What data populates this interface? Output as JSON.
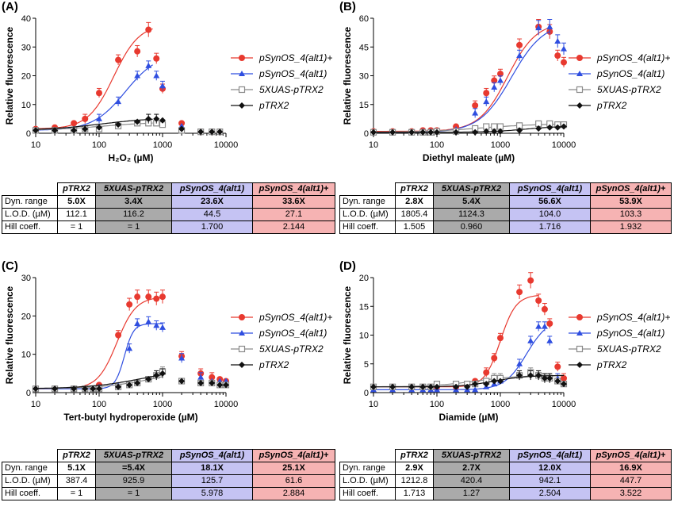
{
  "legend": {
    "alt1plus": "pSynOS_4(alt1)+",
    "alt1": "pSynOS_4(alt1)",
    "xuas": "5XUAS-pTRX2",
    "ptrx2": "pTRX2"
  },
  "colors": {
    "red": "#e8392f",
    "blue": "#2f4ee0",
    "grey": "#8a8a8a",
    "black": "#111111",
    "table_grey": "#aaaaaa",
    "table_blue": "#c5c3f3",
    "table_red": "#f6b3b3"
  },
  "table_headers": [
    "pTRX2",
    "5XUAS-pTRX2",
    "pSynOS_4(alt1)",
    "pSynOS_4(alt1)+"
  ],
  "table_row_labels": [
    "Dyn. range",
    "L.O.D. (µM)",
    "Hill coeff."
  ],
  "panels": [
    {
      "label": "(A)",
      "ylabel": "Relative fluorescence",
      "xlabel": "H₂O₂ (µM)",
      "table": [
        [
          "5.0X",
          "3.4X",
          "23.6X",
          "33.6X"
        ],
        [
          "112.1",
          "116.2",
          "44.5",
          "27.1"
        ],
        [
          "= 1",
          "= 1",
          "1.700",
          "2.144"
        ]
      ]
    },
    {
      "label": "(B)",
      "ylabel": "Relative fluorescence",
      "xlabel": "Diethyl maleate (µM)",
      "table": [
        [
          "2.8X",
          "5.4X",
          "56.6X",
          "53.9X"
        ],
        [
          "1805.4",
          "1124.3",
          "104.0",
          "103.3"
        ],
        [
          "1.505",
          "0.960",
          "1.716",
          "1.932"
        ]
      ]
    },
    {
      "label": "(C)",
      "ylabel": "Relative fluorescence",
      "xlabel": "Tert-butyl hydroperoxide (µM)",
      "table": [
        [
          "5.1X",
          "=5.4X",
          "18.1X",
          "25.1X"
        ],
        [
          "387.4",
          "925.9",
          "125.7",
          "61.6"
        ],
        [
          "= 1",
          "= 1",
          "5.978",
          "2.884"
        ]
      ]
    },
    {
      "label": "(D)",
      "ylabel": "Relative fluorescence",
      "xlabel": "Diamide (µM)",
      "table": [
        [
          "2.9X",
          "2.7X",
          "12.0X",
          "16.9X"
        ],
        [
          "1212.8",
          "420.4",
          "942.1",
          "447.7"
        ],
        [
          "1.713",
          "1.27",
          "2.504",
          "3.522"
        ]
      ]
    }
  ],
  "chart_data": [
    {
      "type": "scatter",
      "xlabel": "H₂O₂ (µM)",
      "ylabel": "Relative fluorescence",
      "xscale": "log",
      "xlim": [
        10,
        10000
      ],
      "ylim": [
        0,
        40
      ],
      "xticks": [
        10,
        100,
        1000,
        10000
      ],
      "yticks": [
        0,
        10,
        20,
        30,
        40
      ],
      "series": [
        {
          "name": "pSynOS_4(alt1)+",
          "color": "red",
          "marker": "circle",
          "x": [
            10,
            20,
            40,
            60,
            100,
            200,
            400,
            600,
            800,
            1000,
            2000,
            4000,
            6000,
            8000
          ],
          "y": [
            1.5,
            2.0,
            3.5,
            5.0,
            14.0,
            25.5,
            28.5,
            36.0,
            26.0,
            15.5,
            3.5,
            0.5,
            0.5,
            0.5
          ],
          "fit": {
            "base": 1.5,
            "top": 38,
            "ec50": 170,
            "hill": 2.144,
            "xmax": 700
          }
        },
        {
          "name": "pSynOS_4(alt1)",
          "color": "blue",
          "marker": "triangle",
          "x": [
            10,
            20,
            40,
            60,
            100,
            200,
            400,
            600,
            800,
            1000,
            2000,
            4000,
            6000,
            8000
          ],
          "y": [
            1.0,
            1.0,
            1.5,
            2.0,
            5.0,
            11.0,
            20.0,
            23.5,
            20.0,
            16.5,
            2.5,
            0.5,
            0.5,
            0.5
          ],
          "fit": {
            "base": 1.0,
            "top": 28,
            "ec50": 260,
            "hill": 1.7,
            "xmax": 700
          }
        },
        {
          "name": "5XUAS-pTRX2",
          "color": "grey",
          "marker": "square",
          "x": [
            10,
            20,
            40,
            60,
            100,
            200,
            400,
            600,
            800,
            1000,
            2000,
            4000,
            6000,
            8000
          ],
          "y": [
            1.0,
            1.0,
            1.0,
            1.5,
            1.5,
            2.5,
            3.5,
            3.5,
            3.5,
            3.0,
            1.0,
            0.5,
            0.5,
            0.5
          ],
          "fit": {
            "base": 1.0,
            "top": 4.0,
            "ec50": 120,
            "hill": 1.0,
            "xmax": 700
          }
        },
        {
          "name": "pTRX2",
          "color": "black",
          "marker": "diamond",
          "x": [
            10,
            20,
            40,
            60,
            100,
            200,
            400,
            600,
            800,
            1000,
            2000,
            4000,
            6000,
            8000
          ],
          "y": [
            1.0,
            1.0,
            1.0,
            1.5,
            2.0,
            3.0,
            4.0,
            5.0,
            5.0,
            4.5,
            1.5,
            0.5,
            0.5,
            0.5
          ],
          "fit": {
            "base": 1.0,
            "top": 5.5,
            "ec50": 110,
            "hill": 1.0,
            "xmax": 700
          }
        }
      ]
    },
    {
      "type": "scatter",
      "xlabel": "Diethyl maleate (µM)",
      "ylabel": "Relative fluorescence",
      "xscale": "log",
      "xlim": [
        10,
        10000
      ],
      "ylim": [
        0,
        60
      ],
      "xticks": [
        10,
        100,
        1000,
        10000
      ],
      "yticks": [
        0,
        15,
        30,
        45,
        60
      ],
      "series": [
        {
          "name": "pSynOS_4(alt1)+",
          "color": "red",
          "marker": "circle",
          "x": [
            10,
            20,
            40,
            60,
            80,
            100,
            200,
            400,
            600,
            800,
            1000,
            2000,
            4000,
            6000,
            8000,
            10000
          ],
          "y": [
            1.0,
            1.0,
            1.0,
            1.5,
            1.5,
            1.5,
            3.5,
            14.5,
            21.0,
            27.5,
            31.0,
            46.0,
            55.5,
            53.0,
            40.5,
            37.0
          ],
          "fit": {
            "base": 1.0,
            "top": 58,
            "ec50": 1300,
            "hill": 1.932,
            "xmax": 6000
          }
        },
        {
          "name": "pSynOS_4(alt1)",
          "color": "blue",
          "marker": "triangle",
          "x": [
            10,
            20,
            40,
            60,
            80,
            100,
            200,
            400,
            600,
            800,
            1000,
            2000,
            4000,
            6000,
            8000,
            10000
          ],
          "y": [
            0.5,
            0.5,
            0.5,
            1.0,
            1.0,
            1.0,
            2.0,
            10.5,
            16.5,
            24.0,
            27.5,
            40.5,
            55.0,
            55.5,
            48.0,
            44.0
          ],
          "fit": {
            "base": 0.5,
            "top": 58,
            "ec50": 1500,
            "hill": 1.716,
            "xmax": 6000
          }
        },
        {
          "name": "5XUAS-pTRX2",
          "color": "grey",
          "marker": "square",
          "x": [
            10,
            20,
            40,
            60,
            80,
            100,
            200,
            400,
            600,
            800,
            1000,
            2000,
            4000,
            6000,
            8000,
            10000
          ],
          "y": [
            0.5,
            0.5,
            0.5,
            0.5,
            0.5,
            1.0,
            1.0,
            2.5,
            3.5,
            3.5,
            3.5,
            4.0,
            5.0,
            5.0,
            4.5,
            4.5
          ],
          "fit": {
            "base": 0.5,
            "top": 5.0,
            "ec50": 500,
            "hill": 0.96,
            "xmax": 10000
          }
        },
        {
          "name": "pTRX2",
          "color": "black",
          "marker": "diamond",
          "x": [
            10,
            20,
            40,
            60,
            80,
            100,
            200,
            400,
            600,
            800,
            1000,
            2000,
            4000,
            6000,
            8000,
            10000
          ],
          "y": [
            0.5,
            0.5,
            0.5,
            0.5,
            0.5,
            0.5,
            0.5,
            0.5,
            1.0,
            1.0,
            1.0,
            1.5,
            2.5,
            3.0,
            3.0,
            3.5
          ],
          "fit": {
            "base": 0.5,
            "top": 3.8,
            "ec50": 2500,
            "hill": 1.505,
            "xmax": 10000
          }
        }
      ]
    },
    {
      "type": "scatter",
      "xlabel": "Tert-butyl hydroperoxide (µM)",
      "ylabel": "Relative fluorescence",
      "xscale": "log",
      "xlim": [
        10,
        10000
      ],
      "ylim": [
        0,
        30
      ],
      "xticks": [
        10,
        100,
        1000,
        10000
      ],
      "yticks": [
        0,
        10,
        20,
        30
      ],
      "series": [
        {
          "name": "pSynOS_4(alt1)+",
          "color": "red",
          "marker": "circle",
          "x": [
            10,
            20,
            40,
            60,
            80,
            100,
            200,
            300,
            400,
            600,
            800,
            1000,
            2000,
            4000,
            6000,
            8000,
            10000
          ],
          "y": [
            1.0,
            1.0,
            1.0,
            1.0,
            1.0,
            2.0,
            15.0,
            23.0,
            25.0,
            25.0,
            24.5,
            25.0,
            9.5,
            5.0,
            4.0,
            3.5,
            3.0
          ],
          "fit": {
            "base": 1.0,
            "top": 25,
            "ec50": 190,
            "hill": 2.884,
            "xmax": 1000
          }
        },
        {
          "name": "pSynOS_4(alt1)",
          "color": "blue",
          "marker": "triangle",
          "x": [
            10,
            20,
            40,
            60,
            80,
            100,
            200,
            300,
            400,
            600,
            800,
            1000,
            2000,
            4000,
            6000,
            8000,
            10000
          ],
          "y": [
            1.0,
            1.0,
            1.0,
            1.0,
            1.0,
            1.5,
            2.0,
            11.5,
            18.0,
            18.5,
            17.5,
            17.0,
            9.0,
            4.0,
            3.0,
            3.0,
            3.0
          ],
          "fit": {
            "base": 1.0,
            "top": 18,
            "ec50": 250,
            "hill": 5.978,
            "xmax": 1000
          }
        },
        {
          "name": "5XUAS-pTRX2",
          "color": "grey",
          "marker": "square",
          "x": [
            10,
            20,
            40,
            60,
            80,
            100,
            200,
            300,
            400,
            600,
            800,
            1000,
            2000,
            4000,
            6000,
            8000,
            10000
          ],
          "y": [
            1.0,
            1.0,
            1.0,
            1.0,
            1.0,
            1.0,
            1.5,
            2.0,
            2.5,
            3.5,
            4.5,
            5.5,
            3.0,
            2.5,
            2.5,
            2.0,
            2.0
          ],
          "fit": {
            "base": 1.0,
            "top": 7.0,
            "ec50": 900,
            "hill": 1.0,
            "xmax": 1000
          }
        },
        {
          "name": "pTRX2",
          "color": "black",
          "marker": "diamond",
          "x": [
            10,
            20,
            40,
            60,
            80,
            100,
            200,
            300,
            400,
            600,
            800,
            1000,
            2000,
            4000,
            6000,
            8000,
            10000
          ],
          "y": [
            1.0,
            1.0,
            1.0,
            1.0,
            1.0,
            1.0,
            1.5,
            2.0,
            2.5,
            3.5,
            4.5,
            5.0,
            3.0,
            2.5,
            2.5,
            2.0,
            2.0
          ],
          "fit": {
            "base": 1.0,
            "top": 6.5,
            "ec50": 500,
            "hill": 1.0,
            "xmax": 1000
          }
        }
      ]
    },
    {
      "type": "scatter",
      "xlabel": "Diamide (µM)",
      "ylabel": "Relative fluorescence",
      "xscale": "log",
      "xlim": [
        10,
        10000
      ],
      "ylim": [
        0,
        20
      ],
      "xticks": [
        10,
        100,
        1000,
        10000
      ],
      "yticks": [
        0,
        5,
        10,
        15,
        20
      ],
      "series": [
        {
          "name": "pSynOS_4(alt1)+",
          "color": "red",
          "marker": "circle",
          "x": [
            10,
            20,
            40,
            60,
            80,
            100,
            200,
            300,
            400,
            600,
            800,
            1000,
            2000,
            3000,
            4000,
            5000,
            6000,
            8000,
            10000
          ],
          "y": [
            1.0,
            1.0,
            1.0,
            1.0,
            1.0,
            1.0,
            1.0,
            1.5,
            2.0,
            3.5,
            6.0,
            9.5,
            17.5,
            19.5,
            16.0,
            14.5,
            12.0,
            4.5,
            2.5
          ],
          "fit": {
            "base": 1.0,
            "top": 17,
            "ec50": 1000,
            "hill": 3.522,
            "xmax": 4000
          }
        },
        {
          "name": "pSynOS_4(alt1)",
          "color": "blue",
          "marker": "triangle",
          "x": [
            10,
            20,
            40,
            60,
            80,
            100,
            200,
            300,
            400,
            600,
            800,
            1000,
            2000,
            3000,
            4000,
            5000,
            6000,
            8000,
            10000
          ],
          "y": [
            0.5,
            0.5,
            0.5,
            0.5,
            0.5,
            0.5,
            0.5,
            0.5,
            0.5,
            1.0,
            1.5,
            2.0,
            5.0,
            9.0,
            11.5,
            11.5,
            9.0,
            2.5,
            1.5
          ],
          "fit": {
            "base": 0.5,
            "top": 13,
            "ec50": 2600,
            "hill": 2.504,
            "xmax": 5000
          }
        },
        {
          "name": "5XUAS-pTRX2",
          "color": "grey",
          "marker": "square",
          "x": [
            10,
            20,
            40,
            60,
            80,
            100,
            200,
            300,
            400,
            600,
            800,
            1000,
            2000,
            3000,
            4000,
            5000,
            6000,
            8000,
            10000
          ],
          "y": [
            1.0,
            1.0,
            1.0,
            1.0,
            1.0,
            1.5,
            1.5,
            1.5,
            1.5,
            2.0,
            2.5,
            2.5,
            3.0,
            3.5,
            3.0,
            2.5,
            2.5,
            2.0,
            1.5
          ],
          "fit": {
            "base": 1.0,
            "top": 3.0,
            "ec50": 400,
            "hill": 1.27,
            "xmax": 10000
          }
        },
        {
          "name": "pTRX2",
          "color": "black",
          "marker": "diamond",
          "x": [
            10,
            20,
            40,
            60,
            80,
            100,
            200,
            300,
            400,
            600,
            800,
            1000,
            2000,
            3000,
            4000,
            5000,
            6000,
            8000,
            10000
          ],
          "y": [
            1.0,
            1.0,
            1.0,
            1.0,
            1.0,
            1.0,
            1.0,
            1.0,
            1.5,
            1.5,
            2.0,
            2.0,
            3.0,
            3.0,
            3.0,
            2.5,
            2.5,
            2.0,
            1.5
          ],
          "fit": {
            "base": 1.0,
            "top": 3.0,
            "ec50": 800,
            "hill": 1.713,
            "xmax": 10000
          }
        }
      ]
    }
  ]
}
